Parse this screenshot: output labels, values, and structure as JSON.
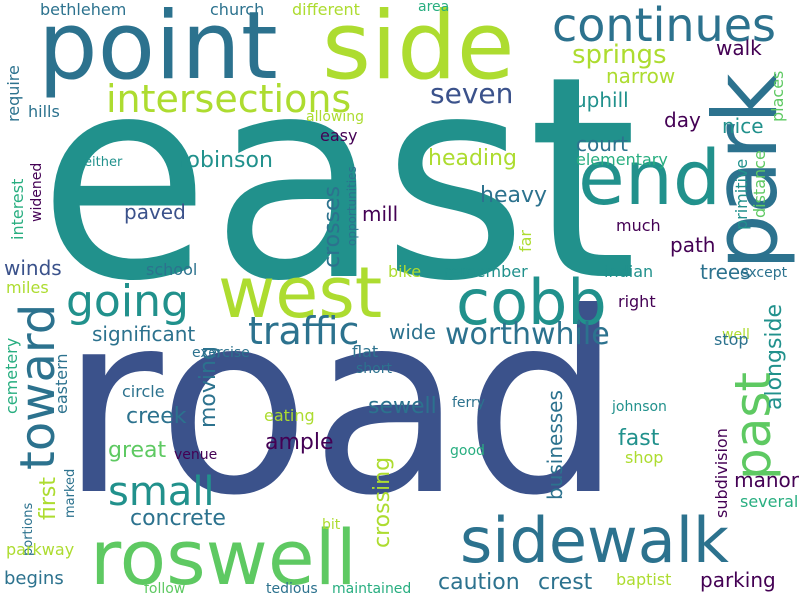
{
  "palette": {
    "dark_purple": "#440154",
    "indigo": "#3b528b",
    "blue": "#2c728e",
    "teal": "#21918c",
    "green": "#28ae80",
    "light_green": "#5ec962",
    "lime": "#addc30"
  },
  "words": {
    "east": "east",
    "road": "road",
    "roswell": "roswell",
    "sidewalk": "sidewalk",
    "point": "point",
    "side": "side",
    "park": "park",
    "west": "west",
    "end": "end",
    "cobb": "cobb",
    "continues": "continues",
    "intersections": "intersections",
    "going": "going",
    "toward": "toward",
    "traffic": "traffic",
    "past": "past",
    "small": "small",
    "worthwhile": "worthwhile",
    "seven": "seven",
    "springs": "springs",
    "heading": "heading",
    "heavy": "heavy",
    "robinson": "robinson",
    "crosses": "crosses",
    "alongside": "alongside",
    "crossing": "crossing",
    "concrete": "concrete",
    "sewell": "sewell",
    "caution": "caution",
    "crest": "crest",
    "parking": "parking",
    "manor": "manor",
    "shop": "shop",
    "fast": "fast",
    "great": "great",
    "ample": "ample",
    "creek": "creek",
    "moving": "moving",
    "first": "first",
    "businesses": "businesses",
    "significant": "significant",
    "wide": "wide",
    "mill": "mill",
    "paved": "paved",
    "winds": "winds",
    "interest": "interest",
    "walk": "walk",
    "narrow": "narrow",
    "uphill": "uphill",
    "day": "day",
    "nice": "nice",
    "court": "court",
    "path": "path",
    "trees": "trees",
    "elementary": "elementary",
    "much": "much",
    "primitive": "primitive",
    "distance": "distance",
    "places": "places",
    "church": "church",
    "bethlehem": "bethlehem",
    "different": "different",
    "area": "area",
    "hills": "hills",
    "require": "require",
    "easy": "easy",
    "allowing": "allowing",
    "either": "either",
    "widened": "widened",
    "opportunities": "opportunities",
    "far": "far",
    "school": "school",
    "bike": "bike",
    "remember": "remember",
    "indian": "indian",
    "except": "except",
    "right": "right",
    "well": "well",
    "miles": "miles",
    "stop": "stop",
    "exercise": "exercise",
    "flat": "flat",
    "short": "short",
    "circle": "circle",
    "ferry": "ferry",
    "johnson": "johnson",
    "cemetery": "cemetery",
    "eastern": "eastern",
    "eating": "eating",
    "venue": "venue",
    "good": "good",
    "subdivision": "subdivision",
    "several": "several",
    "portions": "portions",
    "marked": "marked",
    "bit": "bit",
    "baptist": "baptist",
    "parkway": "parkway",
    "begins": "begins",
    "follow": "follow",
    "tedious": "tedious",
    "maintained": "maintained"
  }
}
